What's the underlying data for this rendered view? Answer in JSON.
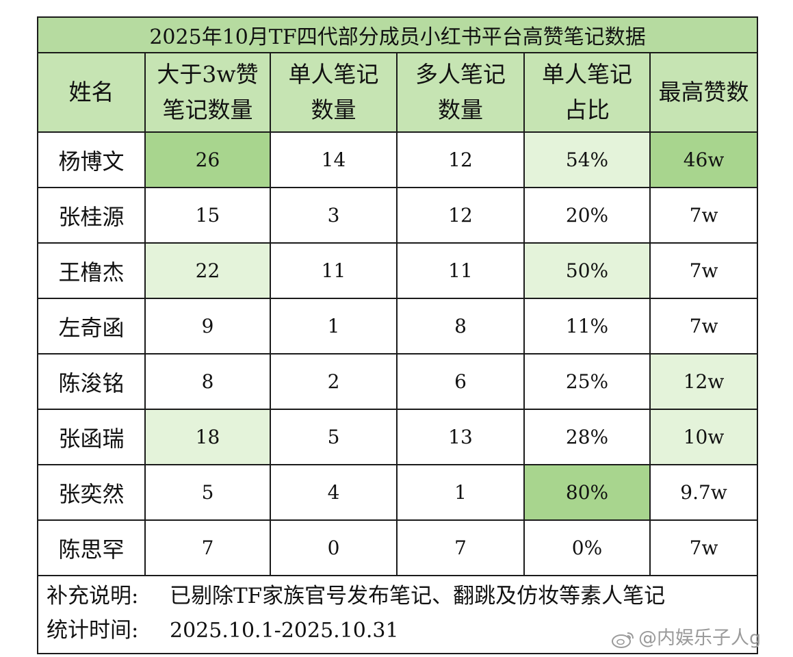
{
  "title": "2025年10月TF四代部分成员小红书平台高赞笔记数据",
  "headers": [
    [
      "姓名"
    ],
    [
      "大于3w赞",
      "笔记数量"
    ],
    [
      "单人笔记",
      "数量"
    ],
    [
      "多人笔记",
      "数量"
    ],
    [
      "单人笔记",
      "占比"
    ],
    [
      "最高赞数"
    ]
  ],
  "rows": [
    {
      "name": "杨博文",
      "over3w": "26",
      "solo": "14",
      "multi": "12",
      "ratio": "54%",
      "max": "46w"
    },
    {
      "name": "张桂源",
      "over3w": "15",
      "solo": "3",
      "multi": "12",
      "ratio": "20%",
      "max": "7w"
    },
    {
      "name": "王橹杰",
      "over3w": "22",
      "solo": "11",
      "multi": "11",
      "ratio": "50%",
      "max": "7w"
    },
    {
      "name": "左奇函",
      "over3w": "9",
      "solo": "1",
      "multi": "8",
      "ratio": "11%",
      "max": "7w"
    },
    {
      "name": "陈浚铭",
      "over3w": "8",
      "solo": "2",
      "multi": "6",
      "ratio": "25%",
      "max": "12w"
    },
    {
      "name": "张函瑞",
      "over3w": "18",
      "solo": "5",
      "multi": "13",
      "ratio": "28%",
      "max": "10w"
    },
    {
      "name": "张奕然",
      "over3w": "5",
      "solo": "4",
      "multi": "1",
      "ratio": "80%",
      "max": "9.7w"
    },
    {
      "name": "陈思罕",
      "over3w": "7",
      "solo": "0",
      "multi": "7",
      "ratio": "0%",
      "max": "7w"
    }
  ],
  "highlight_colors": {
    "strong": "#a8d58e",
    "light": "#e4f3da",
    "header": "#c6e4b3",
    "title": "#b6dba0"
  },
  "notes": {
    "supplement_label": "补充说明:",
    "supplement_text": "已剔除TF家族官号发布笔记、翻跳及仿妆等素人笔记",
    "time_label": "统计时间:",
    "time_text": "2025.10.1-2025.10.31"
  },
  "watermark": {
    "icon": "weibo-icon",
    "text": "@内娱乐子人g"
  }
}
